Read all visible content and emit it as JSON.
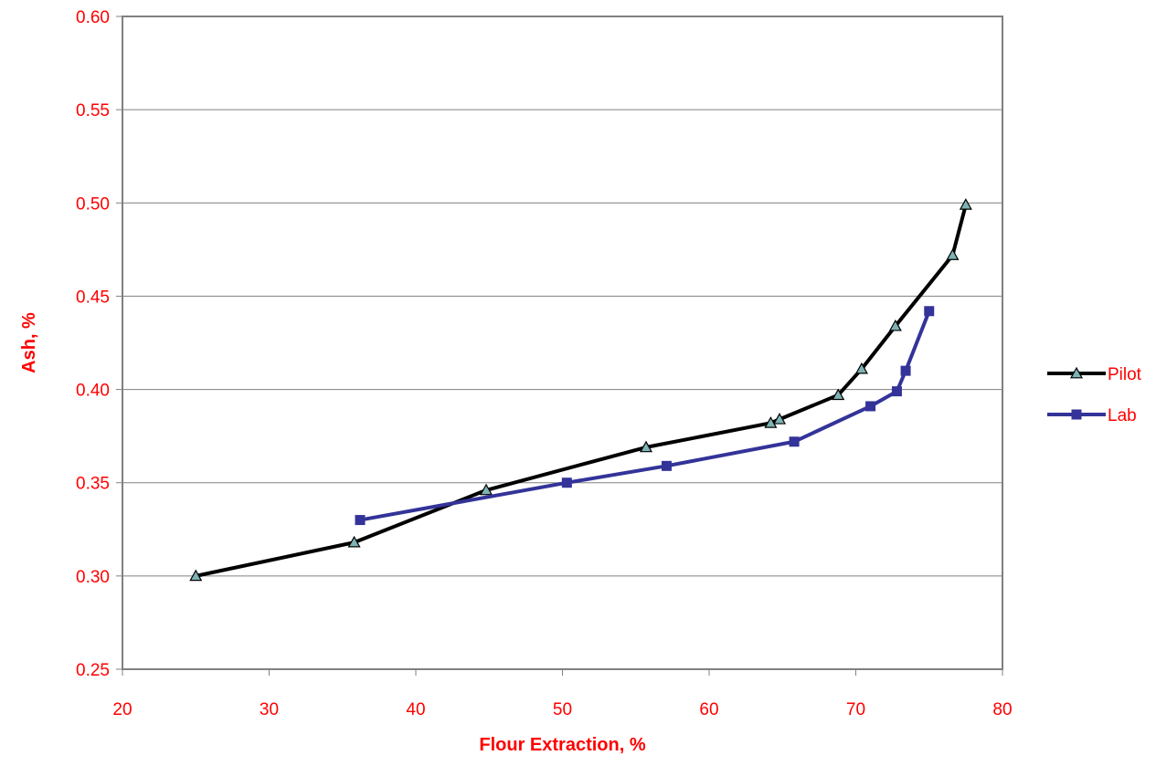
{
  "chart_data": {
    "type": "line",
    "title": "",
    "xlabel": "Flour Extraction, %",
    "ylabel": "Ash, %",
    "xlim": [
      20,
      80
    ],
    "ylim": [
      0.25,
      0.6
    ],
    "xticks": [
      "20",
      "30",
      "40",
      "50",
      "60",
      "70",
      "80"
    ],
    "yticks": [
      "0.25",
      "0.30",
      "0.35",
      "0.40",
      "0.45",
      "0.50",
      "0.55",
      "0.60"
    ],
    "grid": "horizontal",
    "legend_position": "right",
    "series": [
      {
        "name": "Pilot",
        "color": "#000000",
        "marker_color": "#7fb3b3",
        "marker": "triangle",
        "x": [
          25.0,
          35.8,
          44.8,
          55.7,
          64.2,
          64.8,
          68.8,
          70.4,
          72.7,
          76.6,
          77.5
        ],
        "y": [
          0.3,
          0.318,
          0.346,
          0.369,
          0.382,
          0.384,
          0.397,
          0.411,
          0.434,
          0.472,
          0.499
        ]
      },
      {
        "name": "Lab",
        "color": "#333399",
        "marker_color": "#333399",
        "marker": "square",
        "x": [
          36.2,
          50.3,
          57.1,
          65.8,
          71.0,
          72.8,
          73.4,
          75.0
        ],
        "y": [
          0.33,
          0.35,
          0.359,
          0.372,
          0.391,
          0.399,
          0.41,
          0.442
        ]
      }
    ],
    "colors": {
      "text": "#ff0000",
      "gridline": "#808080",
      "plot_border": "#808080"
    }
  }
}
